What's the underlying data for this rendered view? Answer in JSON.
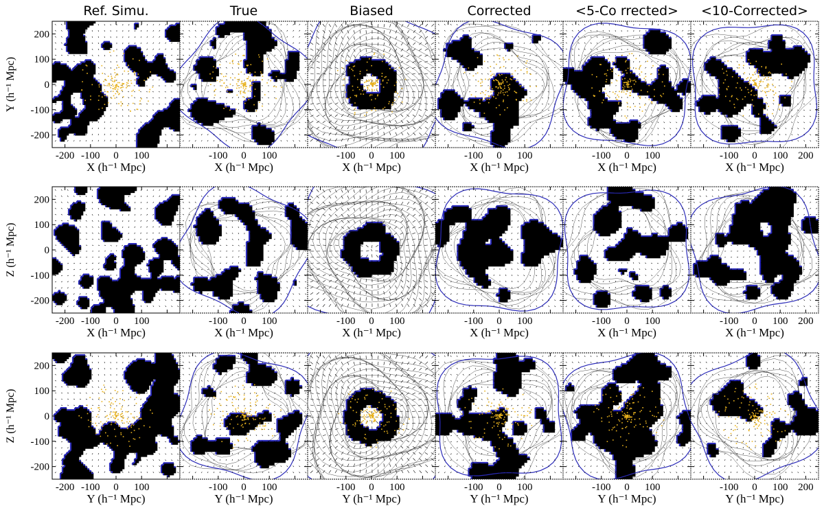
{
  "column_titles": [
    "Ref. Simu.",
    "True",
    "Biased",
    "Corrected",
    "<5-Co rrected>",
    "<10-Corrected>"
  ],
  "row_y_labels": [
    "Y (h⁻¹ Mpc)",
    "Z (h⁻¹ Mpc)",
    "Z (h⁻¹ Mpc)"
  ],
  "row_x_labels": [
    "X (h⁻¹ Mpc)",
    "X (h⁻¹ Mpc)",
    "Y (h⁻¹ Mpc)"
  ],
  "y_ticks": [
    "200",
    "100",
    "0",
    "-100",
    "-200"
  ],
  "x_ticks_first_col": [
    "-200",
    "-100",
    "0",
    "100"
  ],
  "x_ticks_mid_col": [
    "-100",
    "0",
    "100"
  ],
  "x_ticks_last_col_rows_1_2": [
    "-100",
    "0",
    "100",
    "200"
  ],
  "x_ticks_last_col_row_3": [
    "-100",
    "0",
    "100",
    "200"
  ],
  "colors": {
    "underdensity_contour": "#2a2ab8",
    "overdensity_fill": "#000000",
    "galaxy_points": "#e8b21e",
    "velocity_arrows": "#000000"
  },
  "panel_extent_mpc": [
    -250,
    250
  ],
  "panels": [
    {
      "row": 1,
      "col": 1,
      "style": "ref",
      "galaxies": true,
      "seed": 11
    },
    {
      "row": 1,
      "col": 2,
      "style": "true",
      "galaxies": true,
      "seed": 12
    },
    {
      "row": 1,
      "col": 3,
      "style": "biased",
      "galaxies": true,
      "seed": 13
    },
    {
      "row": 1,
      "col": 4,
      "style": "corrected",
      "galaxies": true,
      "seed": 14
    },
    {
      "row": 1,
      "col": 5,
      "style": "avg5",
      "galaxies": true,
      "seed": 15
    },
    {
      "row": 1,
      "col": 6,
      "style": "avg10",
      "galaxies": true,
      "seed": 16
    },
    {
      "row": 2,
      "col": 1,
      "style": "ref",
      "galaxies": false,
      "seed": 21
    },
    {
      "row": 2,
      "col": 2,
      "style": "true",
      "galaxies": false,
      "seed": 22
    },
    {
      "row": 2,
      "col": 3,
      "style": "biased",
      "galaxies": false,
      "seed": 23
    },
    {
      "row": 2,
      "col": 4,
      "style": "corrected",
      "galaxies": false,
      "seed": 24
    },
    {
      "row": 2,
      "col": 5,
      "style": "avg5",
      "galaxies": false,
      "seed": 25
    },
    {
      "row": 2,
      "col": 6,
      "style": "avg10",
      "galaxies": false,
      "seed": 26
    },
    {
      "row": 3,
      "col": 1,
      "style": "ref",
      "galaxies": true,
      "seed": 31
    },
    {
      "row": 3,
      "col": 2,
      "style": "true",
      "galaxies": true,
      "seed": 32
    },
    {
      "row": 3,
      "col": 3,
      "style": "biased",
      "galaxies": true,
      "seed": 33
    },
    {
      "row": 3,
      "col": 4,
      "style": "corrected",
      "galaxies": true,
      "seed": 34
    },
    {
      "row": 3,
      "col": 5,
      "style": "avg5",
      "galaxies": true,
      "seed": 35
    },
    {
      "row": 3,
      "col": 6,
      "style": "avg10",
      "galaxies": true,
      "seed": 36
    }
  ]
}
